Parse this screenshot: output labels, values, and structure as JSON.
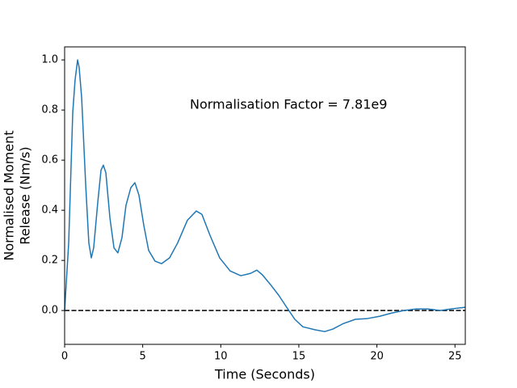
{
  "chart_data": {
    "type": "line",
    "xlabel": "Time (Seconds)",
    "ylabel": [
      "Normalised Moment",
      "Release (Nm/s)"
    ],
    "annotation": "Normalisation Factor = 7.81e9",
    "color": "#1f77b4",
    "hline": 0,
    "x": [
      0,
      0.26,
      0.52,
      0.67,
      0.83,
      0.93,
      1.09,
      1.35,
      1.55,
      1.71,
      1.86,
      2.12,
      2.33,
      2.48,
      2.64,
      2.9,
      3.16,
      3.41,
      3.67,
      3.93,
      4.24,
      4.5,
      4.76,
      5.07,
      5.38,
      5.79,
      6.21,
      6.72,
      7.24,
      7.86,
      8.43,
      8.79,
      9.31,
      9.93,
      10.6,
      11.28,
      11.9,
      12.31,
      12.67,
      13.19,
      13.71,
      14.22,
      14.74,
      15.26,
      16.04,
      16.66,
      17.18,
      17.85,
      18.62,
      19.4,
      20.18,
      20.95,
      21.73,
      22.5,
      23.28,
      24.05,
      24.73,
      25.66
    ],
    "values": [
      0,
      0.27,
      0.79,
      0.92,
      1.0,
      0.97,
      0.85,
      0.5,
      0.27,
      0.21,
      0.25,
      0.43,
      0.56,
      0.58,
      0.55,
      0.37,
      0.25,
      0.23,
      0.29,
      0.42,
      0.49,
      0.51,
      0.46,
      0.34,
      0.24,
      0.197,
      0.187,
      0.21,
      0.27,
      0.36,
      0.397,
      0.384,
      0.3,
      0.21,
      0.158,
      0.139,
      0.148,
      0.161,
      0.142,
      0.103,
      0.061,
      0.013,
      -0.035,
      -0.065,
      -0.077,
      -0.084,
      -0.074,
      -0.052,
      -0.035,
      -0.032,
      -0.023,
      -0.01,
      0,
      0.006,
      0.006,
      0,
      0.006,
      0.013
    ],
    "xlim": [
      0,
      25.66
    ],
    "ylim": [
      -0.135,
      1.052
    ],
    "xticks": [
      0,
      5,
      10,
      15,
      20,
      25
    ],
    "yticks": [
      {
        "value": 0,
        "label": "0.0"
      },
      0.2,
      0.4,
      0.6,
      0.8,
      {
        "value": 1,
        "label": "1.0"
      }
    ]
  }
}
